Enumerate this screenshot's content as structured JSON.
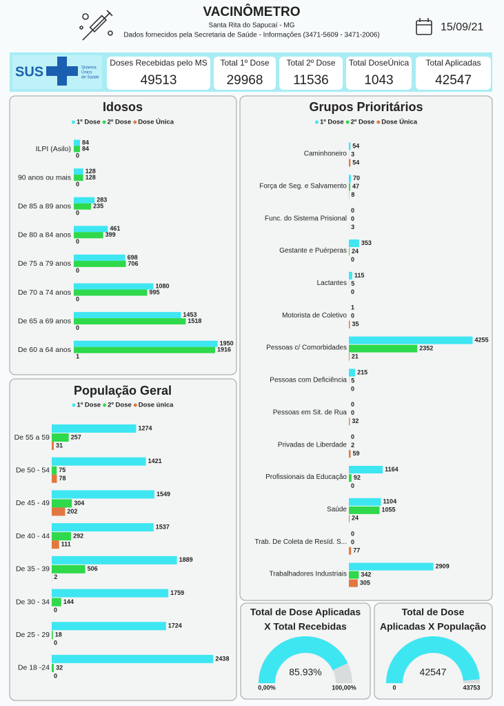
{
  "header": {
    "title": "VACINÔMETRO",
    "subtitle": "Santa Rita do Sapucaí - MG",
    "source": "Dados fornecidos pela Secretaria de Saúde - Informações (3471-5609 - 3471-2006)",
    "date": "15/09/21"
  },
  "logo": {
    "name": "SUS",
    "lines": [
      "Sistema",
      "Único",
      "de Saúde"
    ]
  },
  "kpis": [
    {
      "label": "Doses Recebidas pelo MS",
      "value": 49513
    },
    {
      "label": "Total 1º Dose",
      "value": 29968
    },
    {
      "label": "Total 2º Dose",
      "value": 11536
    },
    {
      "label": "Total DoseÚnica",
      "value": 1043
    },
    {
      "label": "Total Aplicadas",
      "value": 42547
    }
  ],
  "chart_data": [
    {
      "type": "hbar",
      "title": "Idosos",
      "categories": [
        "ILPI (Asilo)",
        "90 anos ou mais",
        "De 85 a 89 anos",
        "De 80 a 84 anos",
        "De 75 a 79 anos",
        "De 70 a 74 anos",
        "De 65 a 69 anos",
        "De 60 a 64 anos"
      ],
      "xlim": [
        0,
        2150
      ],
      "series": [
        {
          "name": "1º Dose",
          "color": "#3ee6f2",
          "values": [
            84,
            128,
            283,
            461,
            698,
            1080,
            1453,
            1950
          ]
        },
        {
          "name": "2º Dose",
          "color": "#2fd94b",
          "values": [
            84,
            128,
            235,
            399,
            706,
            995,
            1518,
            1916
          ]
        },
        {
          "name": "Dose Única",
          "color": "#e2783f",
          "values": [
            0,
            0,
            0,
            0,
            0,
            0,
            0,
            1
          ]
        }
      ]
    },
    {
      "type": "hbar",
      "title": "Grupos Prioritários",
      "categories": [
        "Caminhoneiro",
        "Força de Seg. e Salvamento",
        "Func. do Sistema Prisional",
        "Gestante e Puérperas",
        "Lactantes",
        "Motorista de Coletivo",
        "Pessoas c/ Comorbidades",
        "Pessoas com Deficiência",
        "Pessoas em Sit. de Rua",
        "Privadas de Liberdade",
        "Profissionais da Educação",
        "Saúde",
        "Trab. De Coleta de Resíd. S...",
        "Trabalhadores Industriais"
      ],
      "xlim": [
        0,
        4600
      ],
      "series": [
        {
          "name": "1º Dose",
          "color": "#3ee6f2",
          "values": [
            54,
            70,
            0,
            353,
            115,
            1,
            4255,
            215,
            0,
            0,
            1164,
            1104,
            0,
            2909
          ]
        },
        {
          "name": "2º Dose",
          "color": "#2fd94b",
          "values": [
            3,
            47,
            0,
            24,
            5,
            0,
            2352,
            5,
            0,
            2,
            92,
            1055,
            0,
            342
          ]
        },
        {
          "name": "Dose Única",
          "color": "#e2783f",
          "values": [
            54,
            8,
            3,
            0,
            0,
            35,
            21,
            0,
            32,
            59,
            0,
            24,
            77,
            305
          ]
        }
      ]
    },
    {
      "type": "hbar",
      "title": "População Geral",
      "categories": [
        "De 55 a 59",
        "De 50 - 54",
        "De 45 - 49",
        "De 40 - 44",
        "De 35 - 39",
        "De 30 - 34",
        "De 25 - 29",
        "De 18 -24"
      ],
      "xlim": [
        0,
        2600
      ],
      "series": [
        {
          "name": "1º Dose",
          "color": "#3ee6f2",
          "values": [
            1274,
            1421,
            1549,
            1537,
            1889,
            1759,
            1724,
            2438
          ]
        },
        {
          "name": "2º Dose",
          "color": "#2fd94b",
          "values": [
            257,
            75,
            304,
            292,
            506,
            144,
            18,
            32
          ]
        },
        {
          "name": "Dose única",
          "color": "#e2783f",
          "values": [
            31,
            78,
            202,
            111,
            2,
            0,
            0,
            0
          ]
        }
      ]
    },
    {
      "type": "gauge",
      "title": [
        "Total de Dose Aplicadas",
        "X Total Recebidas"
      ],
      "value": 85.93,
      "value_label": "85.93%",
      "ylim": [
        0,
        100
      ],
      "yticks": [
        {
          "value": 0,
          "label": "0,00%"
        },
        {
          "value": 100,
          "label": "100,00%"
        }
      ],
      "color": "#3ee6f2"
    },
    {
      "type": "gauge",
      "title": [
        "Total de Dose",
        "Aplicadas X População"
      ],
      "value": 42547,
      "ylim": [
        0,
        43753
      ],
      "yticks": [
        0,
        43753
      ],
      "color": "#3ee6f2"
    }
  ]
}
